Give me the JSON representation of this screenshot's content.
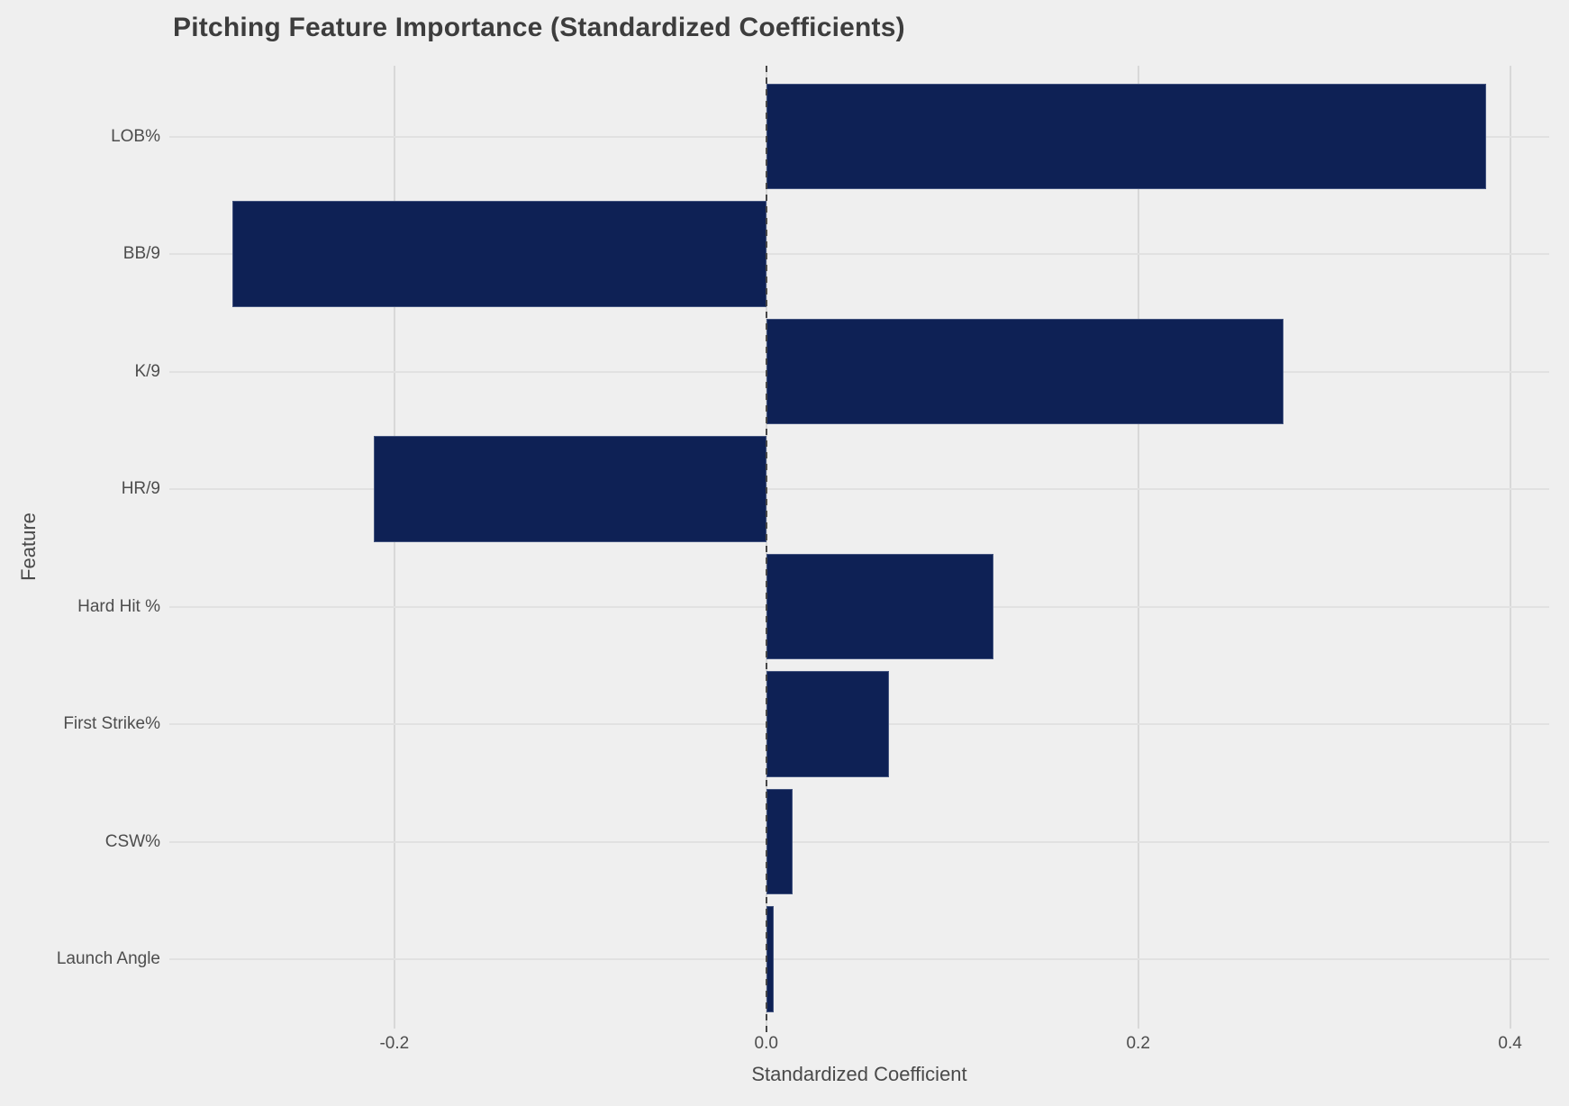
{
  "chart_title": "Pitching Feature Importance (Standardized Coefficients)",
  "chart_data": {
    "type": "bar",
    "orientation": "horizontal",
    "title": "Pitching Feature Importance (Standardized Coefficients)",
    "xlabel": "Standardized Coefficient",
    "ylabel": "Feature",
    "categories": [
      "LOB%",
      "BB/9",
      "K/9",
      "HR/9",
      "Hard Hit %",
      "First Strike%",
      "CSW%",
      "Launch Angle"
    ],
    "values": [
      0.387,
      -0.287,
      0.278,
      -0.211,
      0.122,
      0.066,
      0.014,
      0.004
    ],
    "xlim": [
      -0.321,
      0.421
    ],
    "x_ticks": [
      {
        "label": "-0.2",
        "value": -0.2
      },
      {
        "label": "0.0",
        "value": 0.0
      },
      {
        "label": "0.2",
        "value": 0.2
      },
      {
        "label": "0.4",
        "value": 0.4
      }
    ],
    "grid": true,
    "legend": "none",
    "zero_line_style": "dashed",
    "colors": {
      "bar": "#0e2155",
      "background": "#efefef",
      "gridline": "#d8d8d8",
      "zero_line": "#474747",
      "title_text": "#3d3d3d",
      "axis_text": "#4a4a4a",
      "tick_text": "#4d4d4d"
    }
  }
}
